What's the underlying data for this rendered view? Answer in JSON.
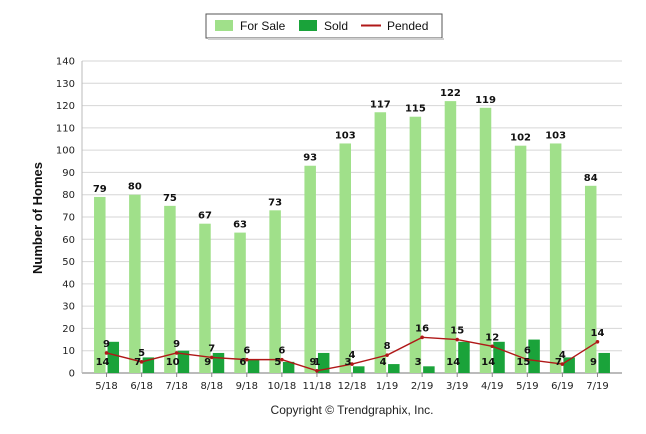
{
  "chart_data": {
    "type": "bar",
    "categories": [
      "5/18",
      "6/18",
      "7/18",
      "8/18",
      "9/18",
      "10/18",
      "11/18",
      "12/18",
      "1/19",
      "2/19",
      "3/19",
      "4/19",
      "5/19",
      "6/19",
      "7/19"
    ],
    "series": [
      {
        "name": "For Sale",
        "kind": "bar",
        "color": "#a0e08a",
        "values": [
          79,
          80,
          75,
          67,
          63,
          73,
          93,
          103,
          117,
          115,
          122,
          119,
          102,
          103,
          84
        ],
        "labels": [
          "79",
          "80",
          "75",
          "67",
          "63",
          "73",
          "93",
          "103",
          "117",
          "115",
          "122",
          "119",
          "102",
          "103",
          "84"
        ]
      },
      {
        "name": "Sold",
        "kind": "bar",
        "color": "#1aa33a",
        "values": [
          14,
          7,
          10,
          9,
          6,
          5,
          9,
          3,
          4,
          3,
          14,
          14,
          15,
          7,
          9
        ],
        "labels": [
          "14",
          "7",
          "10",
          "9",
          "6",
          "5",
          "9",
          "3",
          "4",
          "3",
          "14",
          "14",
          "15",
          "7",
          "9"
        ]
      },
      {
        "name": "Pended",
        "kind": "line",
        "color": "#b01818",
        "values": [
          9,
          5,
          9,
          7,
          6,
          6,
          1,
          4,
          8,
          16,
          15,
          12,
          6,
          4,
          14
        ],
        "labels": [
          "9",
          "5",
          "9",
          "7",
          "6",
          "6",
          "1",
          "4",
          "8",
          "16",
          "15",
          "12",
          "6",
          "4",
          "14"
        ]
      }
    ],
    "yticks": [
      "0",
      "10",
      "20",
      "30",
      "40",
      "50",
      "60",
      "70",
      "80",
      "90",
      "100",
      "110",
      "120",
      "130",
      "140"
    ],
    "ylim": [
      0,
      140
    ],
    "ylabel": "Number of Homes",
    "xlabel": "",
    "legend_position": "top-center",
    "grid": true
  },
  "footer": {
    "copyright": "Copyright © Trendgraphix, Inc."
  }
}
